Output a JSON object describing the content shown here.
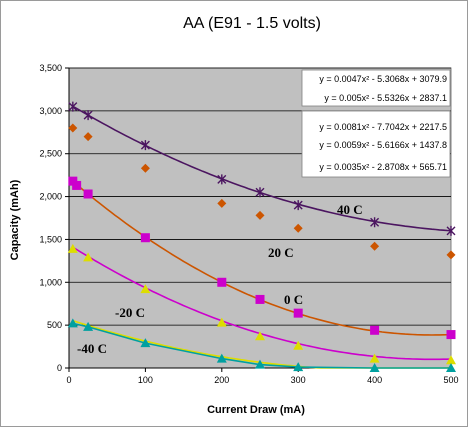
{
  "chart_data": {
    "type": "scatter",
    "title": "AA (E91 - 1.5 volts)",
    "xlabel": "Current Draw (mA)",
    "ylabel": "Capacity (mAh)",
    "xlim": [
      0,
      500
    ],
    "ylim": [
      0,
      3500
    ],
    "x_ticks": [
      "0",
      "100",
      "200",
      "300",
      "400",
      "500"
    ],
    "y_ticks": [
      "0",
      "500",
      "1,000",
      "1,500",
      "2,000",
      "2,500",
      "3,000",
      "3,500"
    ],
    "grid": "horizontal",
    "plot_background": "#c0c0c0",
    "series": [
      {
        "label": "40 C",
        "color": "#4b1560",
        "marker": "asterisk",
        "x": [
          5,
          25,
          100,
          200,
          250,
          300,
          400,
          500
        ],
        "y": [
          3050,
          2950,
          2600,
          2200,
          2050,
          1900,
          1700,
          1600
        ],
        "fit": [
          0.0047,
          -5.3068,
          3079.9
        ]
      },
      {
        "label": "20 C",
        "color": "#cc5500",
        "marker": "diamond",
        "x": [
          5,
          25,
          100,
          200,
          250,
          300,
          400,
          500
        ],
        "y": [
          2800,
          2700,
          2330,
          1920,
          1780,
          1630,
          1420,
          1320
        ],
        "fit": [
          0.0081,
          -7.7042,
          2217.5
        ]
      },
      {
        "label": "0 C",
        "color": "#cc00cc",
        "marker": "square",
        "x": [
          5,
          10,
          25,
          100,
          200,
          250,
          300,
          400,
          500
        ],
        "y": [
          2180,
          2130,
          2030,
          1520,
          1000,
          800,
          640,
          440,
          390
        ],
        "fit": [
          0.0059,
          -5.6166,
          1437.8
        ]
      },
      {
        "label": "-20 C",
        "color": "#dddd00",
        "marker": "triangle",
        "x": [
          5,
          25,
          100,
          200,
          250,
          300,
          400,
          500
        ],
        "y": [
          1390,
          1290,
          920,
          530,
          370,
          260,
          110,
          90
        ],
        "fit": [
          0.0035,
          -2.8708,
          565.71
        ]
      },
      {
        "label": "-40 C",
        "color": "#00a0a0",
        "marker": "triangle",
        "x": [
          5,
          25,
          100,
          200,
          250,
          300,
          400,
          500
        ],
        "y": [
          520,
          480,
          290,
          110,
          40,
          10,
          0,
          0
        ]
      }
    ],
    "equations": [
      "y = 0.0047x² - 5.3068x + 3079.9",
      "y = 0.005x² - 5.5326x + 2837.1",
      "y = 0.0081x² - 7.7042x + 2217.5",
      "y = 0.0059x² - 5.6166x + 1437.8",
      "y = 0.0035x² - 2.8708x + 565.71"
    ]
  }
}
